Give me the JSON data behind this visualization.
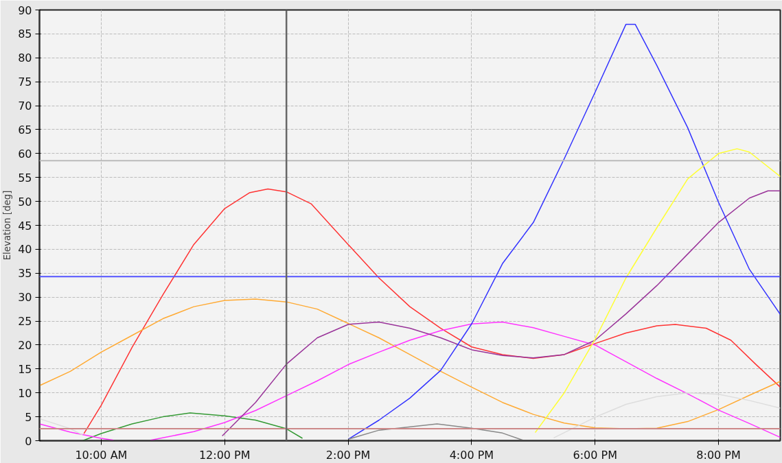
{
  "chart_data": {
    "type": "line",
    "ylabel": "Elevation [deg]",
    "xlim": [
      9,
      21
    ],
    "ylim": [
      0,
      90
    ],
    "xticks": [
      {
        "value": 10,
        "label": "10:00 AM"
      },
      {
        "value": 12,
        "label": "12:00 PM"
      },
      {
        "value": 14,
        "label": "2:00 PM"
      },
      {
        "value": 16,
        "label": "4:00 PM"
      },
      {
        "value": 18,
        "label": "6:00 PM"
      },
      {
        "value": 20,
        "label": "8:00 PM"
      }
    ],
    "yticks": [
      0,
      5,
      10,
      15,
      20,
      25,
      30,
      35,
      40,
      45,
      50,
      55,
      60,
      65,
      70,
      75,
      80,
      85,
      90
    ],
    "grid": true,
    "marker": "none",
    "line_style": "solid",
    "series": [
      {
        "color": "#ff3333",
        "x": [
          9.72,
          10,
          10.5,
          11,
          11.5,
          12,
          12.4,
          12.7,
          13,
          13.4,
          14,
          14.5,
          15,
          15.5,
          16,
          16.5,
          17,
          17.5,
          18,
          18.5,
          19,
          19.3,
          19.8,
          20.2,
          20.6,
          21
        ],
        "values": [
          1.5,
          7.4,
          19.5,
          30.5,
          41,
          48.5,
          51.8,
          52.6,
          52,
          49.5,
          41,
          34,
          28,
          23.5,
          19.6,
          18,
          17.2,
          18,
          20.3,
          22.5,
          24,
          24.3,
          23.5,
          21,
          16,
          11.2
        ]
      },
      {
        "color": "#ffaa33",
        "x": [
          9,
          9.5,
          10,
          10.5,
          11,
          11.5,
          12,
          12.5,
          13,
          13.5,
          14,
          14.5,
          15,
          15.5,
          16,
          16.5,
          17,
          17.5,
          18,
          18.5,
          19,
          19.5,
          20,
          20.5,
          21
        ],
        "values": [
          11.5,
          14.5,
          18.5,
          22,
          25.5,
          28,
          29.3,
          29.6,
          29,
          27.5,
          24.5,
          21.5,
          18,
          14.5,
          11.2,
          8,
          5.5,
          3.7,
          2.7,
          2.5,
          2.6,
          4,
          6.5,
          9.5,
          12.4
        ]
      },
      {
        "color": "#339933",
        "x": [
          9.7,
          10,
          10.5,
          11,
          11.44,
          12,
          12.5,
          13,
          13.26
        ],
        "values": [
          0,
          1.5,
          3.5,
          5,
          5.8,
          5.2,
          4.3,
          2.5,
          0.5
        ]
      },
      {
        "color": "#ff33ff",
        "x": [
          9,
          9.5,
          10,
          10.2,
          10.5,
          10.8,
          11.5,
          12,
          12.5,
          13,
          13.5,
          14,
          14.5,
          15,
          15.5,
          16,
          16.5,
          17,
          17.5,
          18,
          18.5,
          19,
          19.5,
          20,
          20.5,
          21
        ],
        "values": [
          3.5,
          1.8,
          0.5,
          0.1,
          null,
          0.1,
          1.9,
          3.8,
          6.3,
          9.4,
          12.5,
          15.9,
          18.5,
          21,
          23,
          24.4,
          24.8,
          23.6,
          21.8,
          20,
          16.5,
          13,
          9.8,
          6.4,
          3.6,
          0.7
        ]
      },
      {
        "color": "#993399",
        "x": [
          11.96,
          12.5,
          13,
          13.5,
          14,
          14.5,
          15,
          15.5,
          16,
          16.5,
          17,
          17.5,
          18,
          18.5,
          19,
          19.5,
          20,
          20.5,
          20.8,
          21
        ],
        "values": [
          1,
          8,
          16,
          21.5,
          24.3,
          24.8,
          23.5,
          21.5,
          19,
          17.8,
          17.3,
          18,
          21,
          26.5,
          32.4,
          39,
          45.6,
          50.7,
          52.2,
          52.2
        ]
      },
      {
        "color": "#3333ff",
        "x": [
          14,
          14.5,
          15,
          15.5,
          16,
          16.5,
          17,
          17.5,
          18,
          18.5,
          18.65,
          19,
          19.5,
          20,
          20.5,
          21
        ],
        "values": [
          0.3,
          4.3,
          8.9,
          14.7,
          24.4,
          37,
          45.6,
          58.9,
          72.8,
          87,
          87,
          78.4,
          65.4,
          49.8,
          35.8,
          26.4
        ]
      },
      {
        "color": "#ffff33",
        "x": [
          17.03,
          17.5,
          18,
          18.5,
          19,
          19.5,
          20,
          20.3,
          20.5,
          21
        ],
        "values": [
          1.7,
          10,
          21.2,
          34,
          44.5,
          54.7,
          60,
          61,
          60.3,
          55.2
        ]
      },
      {
        "color": "#dddddd",
        "x": [
          9,
          9.5,
          9.7,
          10,
          17.33,
          18,
          18.5,
          19,
          19.5,
          20,
          20.5,
          21
        ],
        "values": [
          4.6,
          2.5,
          1.2,
          null,
          0.6,
          4.9,
          7.6,
          9.2,
          10,
          9.7,
          8.4,
          6.8
        ]
      },
      {
        "color": "#888888",
        "x": [
          14,
          14.5,
          15.44,
          16,
          16.5,
          16.83
        ],
        "values": [
          0.3,
          2.2,
          3.5,
          2.6,
          1.6,
          0.1
        ]
      }
    ],
    "ref_lines": [
      {
        "axis": "y",
        "value": 34.3,
        "color": "#5555ff"
      },
      {
        "axis": "y",
        "value": 58.5,
        "color": "#bbbbbb"
      },
      {
        "axis": "y",
        "value": 2.5,
        "color": "#cc8888"
      },
      {
        "axis": "x",
        "value": 13,
        "color": "#666666"
      }
    ]
  }
}
